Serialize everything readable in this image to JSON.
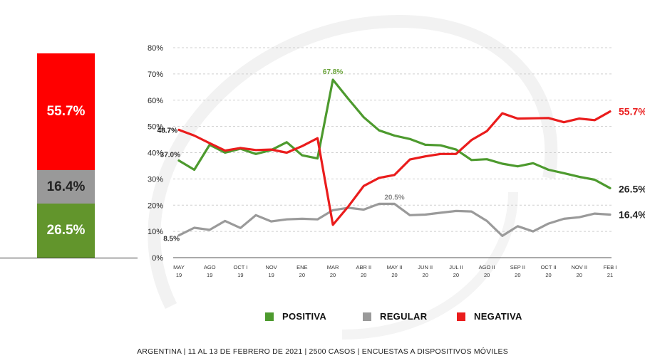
{
  "chart_data": [
    {
      "type": "stacked-bar",
      "segments": [
        {
          "name": "NEGATIVA",
          "value": 55.7,
          "label": "55.7%",
          "color": "#ff0000"
        },
        {
          "name": "REGULAR",
          "value": 16.4,
          "label": "16.4%",
          "color": "#999999"
        },
        {
          "name": "POSITIVA",
          "value": 26.5,
          "label": "26.5%",
          "color": "#62952c"
        }
      ]
    },
    {
      "type": "line",
      "ylim": [
        0,
        80
      ],
      "yticks": [
        "0%",
        "10%",
        "20%",
        "30%",
        "40%",
        "50%",
        "60%",
        "70%",
        "80%"
      ],
      "categories": [
        "MAY 19",
        "",
        "AGO 19",
        "",
        "OCT I 19",
        "",
        "NOV 19",
        "",
        "ENE 20",
        "",
        "MAR 20",
        "",
        "ABR II 20",
        "",
        "MAY II 20",
        "",
        "JUN II 20",
        "",
        "JUL II 20",
        "",
        "AGO II 20",
        "",
        "SEP II 20",
        "",
        "OCT II 20",
        "",
        "NOV II 20",
        "",
        "FEB I 21"
      ],
      "tick_labels": [
        [
          "MAY",
          "19"
        ],
        [
          "AGO",
          "19"
        ],
        [
          "OCT I",
          "19"
        ],
        [
          "NOV",
          "19"
        ],
        [
          "ENE",
          "20"
        ],
        [
          "MAR",
          "20"
        ],
        [
          "ABR II",
          "20"
        ],
        [
          "MAY II",
          "20"
        ],
        [
          "JUN II",
          "20"
        ],
        [
          "JUL II",
          "20"
        ],
        [
          "AGO II",
          "20"
        ],
        [
          "SEP II",
          "20"
        ],
        [
          "OCT II",
          "20"
        ],
        [
          "NOV II",
          "20"
        ],
        [
          "FEB I",
          "21"
        ]
      ],
      "series": [
        {
          "name": "POSITIVA",
          "color": "#4d9a2e",
          "values": [
            37.0,
            33.5,
            43.0,
            40.0,
            41.5,
            39.5,
            41.0,
            44.0,
            39.0,
            37.8,
            67.8,
            60.5,
            53.5,
            48.5,
            46.5,
            45.2,
            43.0,
            42.8,
            41.2,
            37.2,
            37.5,
            35.8,
            34.8,
            36.0,
            33.5,
            32.2,
            30.8,
            29.7,
            26.5
          ]
        },
        {
          "name": "REGULAR",
          "color": "#9a9a9a",
          "values": [
            8.5,
            11.4,
            10.6,
            14.0,
            11.3,
            16.2,
            13.8,
            14.6,
            14.8,
            14.6,
            18.1,
            19.0,
            18.3,
            20.5,
            20.5,
            16.2,
            16.4,
            17.1,
            17.8,
            17.6,
            14.0,
            8.3,
            12.0,
            10.0,
            13.0,
            14.8,
            15.4,
            16.8,
            16.4
          ]
        },
        {
          "name": "NEGATIVA",
          "color": "#ea1c1c",
          "values": [
            48.7,
            46.5,
            43.6,
            40.8,
            41.8,
            41.0,
            41.2,
            40.0,
            42.5,
            45.5,
            12.5,
            19.5,
            27.3,
            30.4,
            31.5,
            37.4,
            38.6,
            39.5,
            39.5,
            44.8,
            48.2,
            55.0,
            53.0,
            53.1,
            53.2,
            51.6,
            53.0,
            52.4,
            55.7
          ]
        }
      ],
      "annotations": [
        {
          "text": "67.8%",
          "series": "POSITIVA",
          "index": 10
        },
        {
          "text": "48.7%",
          "series": "NEGATIVA",
          "index": 0
        },
        {
          "text": "37.0%",
          "series": "POSITIVA",
          "index": 0
        },
        {
          "text": "20.5%",
          "series": "REGULAR",
          "index": 14
        },
        {
          "text": "8.5%",
          "series": "REGULAR",
          "index": 0
        },
        {
          "text": "55.7%",
          "series": "NEGATIVA",
          "index": 28
        },
        {
          "text": "26.5%",
          "series": "POSITIVA",
          "index": 28
        },
        {
          "text": "16.4%",
          "series": "REGULAR",
          "index": 28
        }
      ]
    }
  ],
  "legend": [
    {
      "label": "POSITIVA",
      "color": "#4d9a2e"
    },
    {
      "label": "REGULAR",
      "color": "#9a9a9a"
    },
    {
      "label": "NEGATIVA",
      "color": "#ea1c1c"
    }
  ],
  "footer": "ARGENTINA | 11 AL 13 DE FEBRERO DE 2021 | 2500 CASOS | ENCUESTAS A DISPOSITIVOS MÓVILES"
}
